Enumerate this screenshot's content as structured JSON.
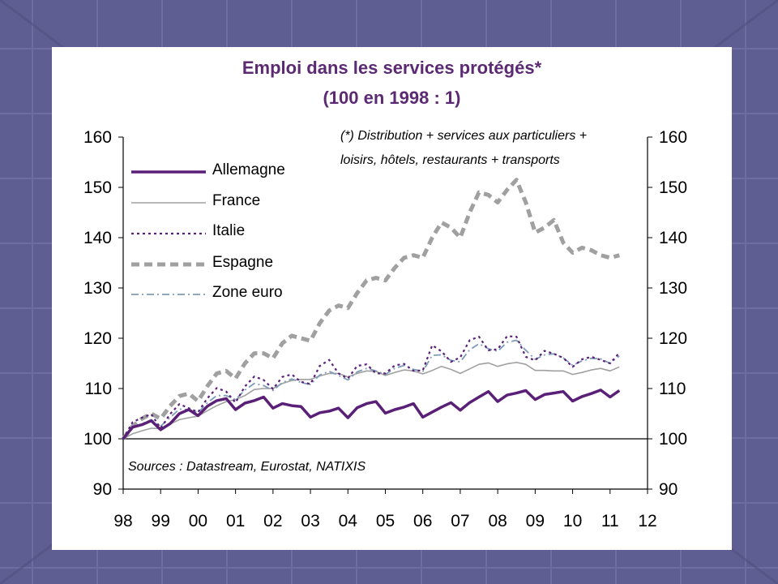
{
  "theme": {
    "background": "#5e5e92",
    "panel": "#ffffff",
    "title_color": "#5b2a73"
  },
  "chart_data": {
    "type": "line",
    "title": "Emploi dans les services protégés*",
    "subtitle": "(100 en 1998 : 1)",
    "note_line1": "(*) Distribution + services aux particuliers +",
    "note_line2": "loisirs, hôtels, restaurants + transports",
    "source": "Sources : Datastream, Eurostat, NATIXIS",
    "xlabel": "",
    "ylabel": "",
    "x_ticks": [
      "98",
      "99",
      "00",
      "01",
      "02",
      "03",
      "04",
      "05",
      "06",
      "07",
      "08",
      "09",
      "10",
      "11",
      "12"
    ],
    "y_ticks": [
      90,
      100,
      110,
      120,
      130,
      140,
      150,
      160
    ],
    "ylim": [
      90,
      160
    ],
    "xlim": [
      1998,
      2012
    ],
    "grid": false,
    "secondary_y_axis": true,
    "legend_position": "top-left",
    "series": [
      {
        "name": "Allemagne",
        "color": "#5a2078",
        "style": "solid-thick",
        "x": [
          1998.0,
          1998.25,
          1998.5,
          1998.75,
          1999.0,
          1999.25,
          1999.5,
          1999.75,
          2000.0,
          2000.25,
          2000.5,
          2000.75,
          2001.0,
          2001.25,
          2001.5,
          2001.75,
          2002.0,
          2002.25,
          2002.5,
          2002.75,
          2003.0,
          2003.25,
          2003.5,
          2003.75,
          2004.0,
          2004.25,
          2004.5,
          2004.75,
          2005.0,
          2005.25,
          2005.5,
          2005.75,
          2006.0,
          2006.25,
          2006.5,
          2006.75,
          2007.0,
          2007.25,
          2007.5,
          2007.75,
          2008.0,
          2008.25,
          2008.5,
          2008.75,
          2009.0,
          2009.25,
          2009.5,
          2009.75,
          2010.0,
          2010.25,
          2010.5,
          2010.75,
          2011.0,
          2011.25
        ],
        "values": [
          100,
          102.3,
          102.8,
          103.6,
          101.8,
          103.0,
          105.0,
          105.8,
          104.6,
          106.5,
          107.6,
          108.0,
          105.8,
          107.1,
          107.6,
          108.3,
          106.1,
          107.0,
          106.6,
          106.4,
          104.3,
          105.2,
          105.5,
          106.1,
          104.2,
          106.2,
          107.0,
          107.4,
          105.1,
          105.8,
          106.3,
          107.0,
          104.3,
          105.3,
          106.3,
          107.2,
          105.7,
          107.2,
          108.3,
          109.4,
          107.4,
          108.7,
          109.1,
          109.6,
          107.8,
          108.8,
          109.1,
          109.4,
          107.5,
          108.4,
          109.0,
          109.7,
          108.3,
          109.6
        ]
      },
      {
        "name": "France",
        "color": "#a0a0a0",
        "style": "solid-thin",
        "x": [
          1998.0,
          1998.25,
          1998.5,
          1998.75,
          1999.0,
          1999.25,
          1999.5,
          1999.75,
          2000.0,
          2000.25,
          2000.5,
          2000.75,
          2001.0,
          2001.25,
          2001.5,
          2001.75,
          2002.0,
          2002.25,
          2002.5,
          2002.75,
          2003.0,
          2003.25,
          2003.5,
          2003.75,
          2004.0,
          2004.25,
          2004.5,
          2004.75,
          2005.0,
          2005.25,
          2005.5,
          2005.75,
          2006.0,
          2006.25,
          2006.5,
          2006.75,
          2007.0,
          2007.25,
          2007.5,
          2007.75,
          2008.0,
          2008.25,
          2008.5,
          2008.75,
          2009.0,
          2009.25,
          2009.5,
          2009.75,
          2010.0,
          2010.25,
          2010.5,
          2010.75,
          2011.0,
          2011.25
        ],
        "values": [
          100,
          101.0,
          101.6,
          102.1,
          102.0,
          102.9,
          103.8,
          104.2,
          104.5,
          105.6,
          106.6,
          107.4,
          107.8,
          108.6,
          109.8,
          110.0,
          110.0,
          111.0,
          111.6,
          111.8,
          111.8,
          112.5,
          113.0,
          113.0,
          112.3,
          113.0,
          113.5,
          113.4,
          112.6,
          113.2,
          113.7,
          113.5,
          112.9,
          113.6,
          114.4,
          113.8,
          113.0,
          113.9,
          114.8,
          115.1,
          114.4,
          114.9,
          115.2,
          114.8,
          113.6,
          113.6,
          113.5,
          113.5,
          112.8,
          113.2,
          113.7,
          114.0,
          113.5,
          114.3
        ]
      },
      {
        "name": "Italie",
        "color": "#5a2078",
        "style": "dotted",
        "x": [
          1998.0,
          1998.25,
          1998.5,
          1998.75,
          1999.0,
          1999.25,
          1999.5,
          1999.75,
          2000.0,
          2000.25,
          2000.5,
          2000.75,
          2001.0,
          2001.25,
          2001.5,
          2001.75,
          2002.0,
          2002.25,
          2002.5,
          2002.75,
          2003.0,
          2003.25,
          2003.5,
          2003.75,
          2004.0,
          2004.25,
          2004.5,
          2004.75,
          2005.0,
          2005.25,
          2005.5,
          2005.75,
          2006.0,
          2006.25,
          2006.5,
          2006.75,
          2007.0,
          2007.25,
          2007.5,
          2007.75,
          2008.0,
          2008.25,
          2008.5,
          2008.75,
          2009.0,
          2009.25,
          2009.5,
          2009.75,
          2010.0,
          2010.25,
          2010.5,
          2010.75,
          2011.0,
          2011.25
        ],
        "values": [
          100,
          103.3,
          104.2,
          104.9,
          102.1,
          104.9,
          106.9,
          106.1,
          105.3,
          108.1,
          110.1,
          109.4,
          107.2,
          110.4,
          112.4,
          111.7,
          109.9,
          112.3,
          112.8,
          111.3,
          110.9,
          114.5,
          115.7,
          113.0,
          112.0,
          114.5,
          114.8,
          113.0,
          113.0,
          114.6,
          114.9,
          113.5,
          113.6,
          118.6,
          117.4,
          115.3,
          116.2,
          119.6,
          120.3,
          117.6,
          117.8,
          120.4,
          120.3,
          116.3,
          115.6,
          117.5,
          116.9,
          116.1,
          114.3,
          115.8,
          116.3,
          115.7,
          115.0,
          117.1
        ]
      },
      {
        "name": "Espagne",
        "color": "#a0a0a0",
        "style": "dashed-thick",
        "x": [
          1998.0,
          1998.25,
          1998.5,
          1998.75,
          1999.0,
          1999.25,
          1999.5,
          1999.75,
          2000.0,
          2000.25,
          2000.5,
          2000.75,
          2001.0,
          2001.25,
          2001.5,
          2001.75,
          2002.0,
          2002.25,
          2002.5,
          2002.75,
          2003.0,
          2003.25,
          2003.5,
          2003.75,
          2004.0,
          2004.25,
          2004.5,
          2004.75,
          2005.0,
          2005.25,
          2005.5,
          2005.75,
          2006.0,
          2006.25,
          2006.5,
          2006.75,
          2007.0,
          2007.25,
          2007.5,
          2007.75,
          2008.0,
          2008.25,
          2008.5,
          2008.75,
          2009.0,
          2009.25,
          2009.5,
          2009.75,
          2010.0,
          2010.25,
          2010.5,
          2010.75,
          2011.0,
          2011.25
        ],
        "values": [
          100,
          102.5,
          104.0,
          105.0,
          104.0,
          106.5,
          108.5,
          109.0,
          107.5,
          110.5,
          113.0,
          113.5,
          112.0,
          115.0,
          117.0,
          117.0,
          116.0,
          119.0,
          120.5,
          120.0,
          119.5,
          123.0,
          125.5,
          126.5,
          126.0,
          129.0,
          131.5,
          132.0,
          131.5,
          134.0,
          136.0,
          136.5,
          136.0,
          140.0,
          143.0,
          142.0,
          140.0,
          145.0,
          149.0,
          148.5,
          147.0,
          149.5,
          151.5,
          147.0,
          141.0,
          142.0,
          143.5,
          139.0,
          137.0,
          138.0,
          137.5,
          136.5,
          136.0,
          136.5
        ]
      },
      {
        "name": "Zone euro",
        "color": "#7e9cb8",
        "style": "dash-dot",
        "x": [
          1998.0,
          1998.25,
          1998.5,
          1998.75,
          1999.0,
          1999.25,
          1999.5,
          1999.75,
          2000.0,
          2000.25,
          2000.5,
          2000.75,
          2001.0,
          2001.25,
          2001.5,
          2001.75,
          2002.0,
          2002.25,
          2002.5,
          2002.75,
          2003.0,
          2003.25,
          2003.5,
          2003.75,
          2004.0,
          2004.25,
          2004.5,
          2004.75,
          2005.0,
          2005.25,
          2005.5,
          2005.75,
          2006.0,
          2006.25,
          2006.5,
          2006.75,
          2007.0,
          2007.25,
          2007.5,
          2007.75,
          2008.0,
          2008.25,
          2008.5,
          2008.75,
          2009.0,
          2009.25,
          2009.5,
          2009.75,
          2010.0,
          2010.25,
          2010.5,
          2010.75,
          2011.0,
          2011.25
        ],
        "values": [
          100,
          102.2,
          103.0,
          103.8,
          102.5,
          104.2,
          105.9,
          105.8,
          105.2,
          107.2,
          108.6,
          108.6,
          107.8,
          109.7,
          111.0,
          110.6,
          109.6,
          111.2,
          111.9,
          111.2,
          110.8,
          112.7,
          113.4,
          112.6,
          111.7,
          113.3,
          114.0,
          113.5,
          112.8,
          114.0,
          114.6,
          113.8,
          113.4,
          116.6,
          116.7,
          115.6,
          115.3,
          117.7,
          118.9,
          117.9,
          117.4,
          119.2,
          119.6,
          117.6,
          115.8,
          116.7,
          116.9,
          116.1,
          114.6,
          115.5,
          116.0,
          115.9,
          115.0,
          116.5
        ]
      }
    ]
  }
}
